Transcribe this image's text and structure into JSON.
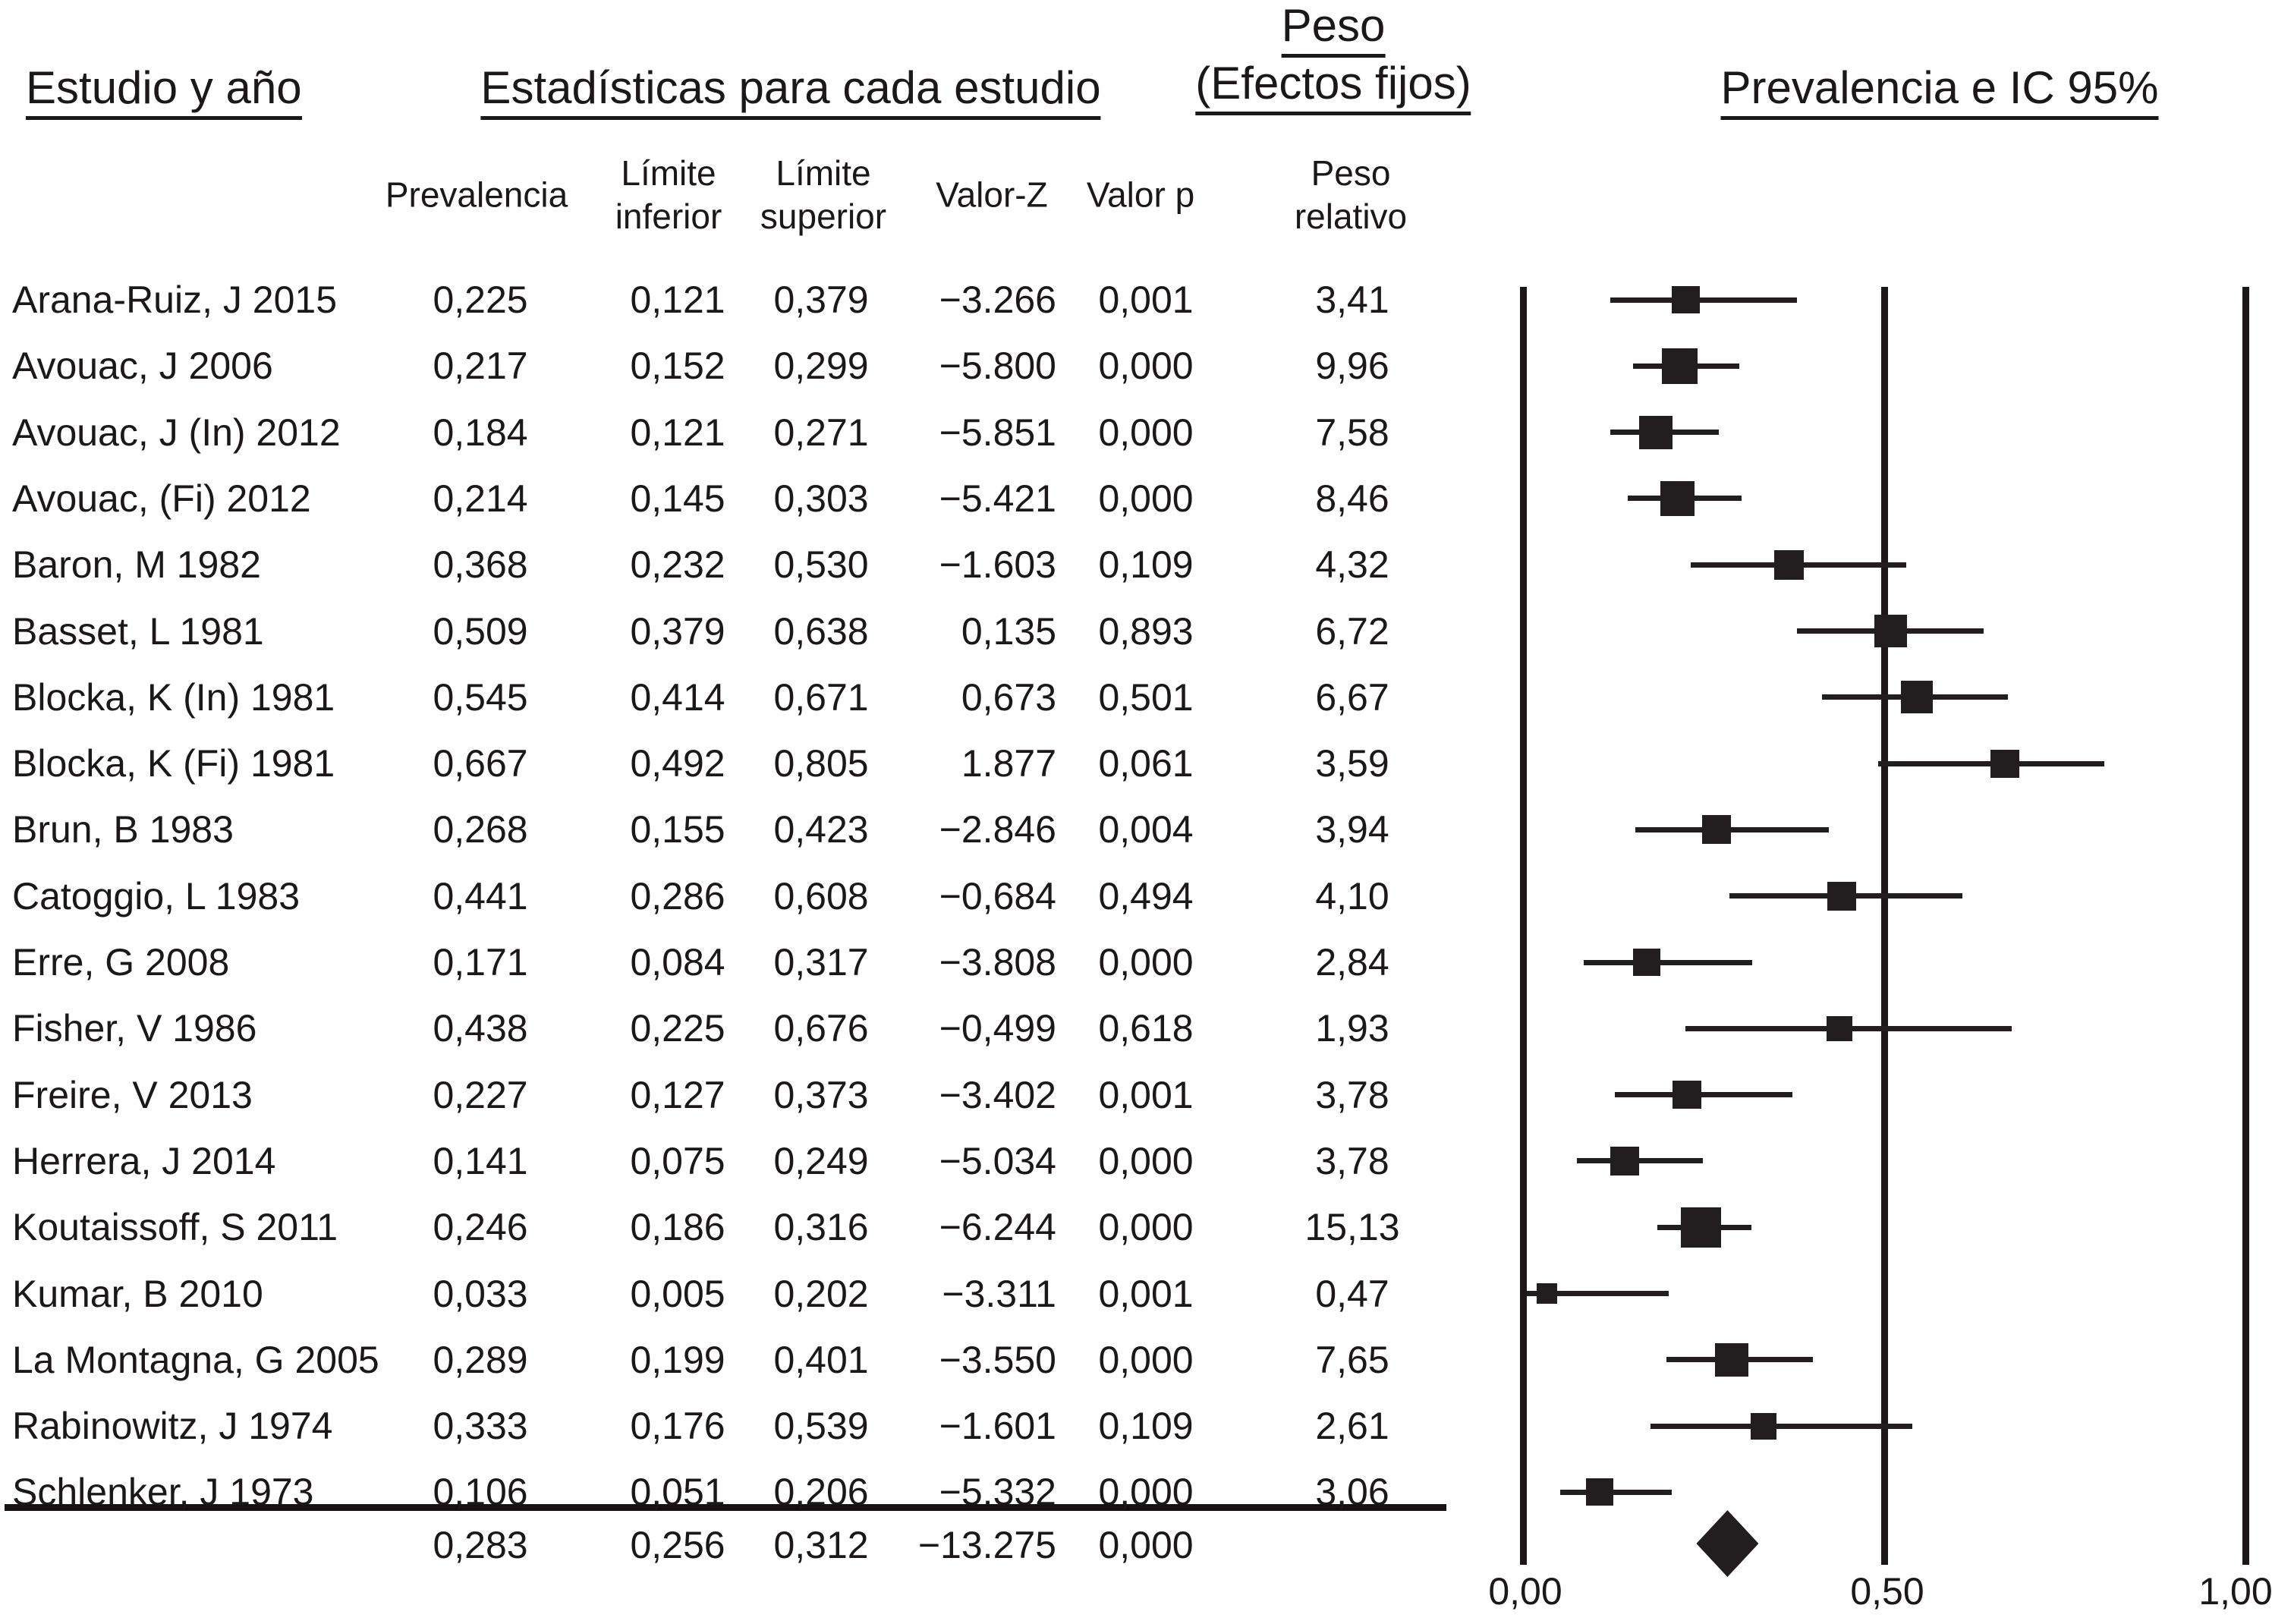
{
  "header": {
    "study_title": "Estudio y año",
    "stats_title": "Estadísticas para cada estudio",
    "weight_title": [
      "Peso",
      "(Efectos fijos)"
    ],
    "plot_title": "Prevalencia e IC 95%"
  },
  "table_headers": {
    "prevalencia": "Prevalencia",
    "limite_inferior": [
      "Límite",
      "inferior"
    ],
    "limite_superior": [
      "Límite",
      "superior"
    ],
    "valor_z": "Valor-Z",
    "valor_p": "Valor p",
    "peso_relativo": [
      "Peso",
      "relativo"
    ]
  },
  "chart_data": {
    "type": "forest",
    "title": "Prevalencia e IC 95%",
    "effects_model": "Efectos fijos",
    "x_axis": {
      "ticks": [
        {
          "label": "0,00",
          "value": 0.0
        },
        {
          "label": "0,50",
          "value": 0.5
        },
        {
          "label": "1,00",
          "value": 1.0
        }
      ],
      "range": [
        0,
        1
      ],
      "gridlines": [
        0,
        0.5,
        1
      ]
    },
    "studies": [
      {
        "name": "Arana-Ruiz, J 2015",
        "prevalencia": "0,225",
        "limite_inferior": "0,121",
        "limite_superior": "0,379",
        "valor_z": "−3.266",
        "valor_p": "0,001",
        "peso_relativo": "3,41",
        "est": 0.225,
        "lo": 0.121,
        "hi": 0.379,
        "weight": 3.41
      },
      {
        "name": "Avouac, J 2006",
        "prevalencia": "0,217",
        "limite_inferior": "0,152",
        "limite_superior": "0,299",
        "valor_z": "−5.800",
        "valor_p": "0,000",
        "peso_relativo": "9,96",
        "est": 0.217,
        "lo": 0.152,
        "hi": 0.299,
        "weight": 9.96
      },
      {
        "name": "Avouac, J (In) 2012",
        "prevalencia": "0,184",
        "limite_inferior": "0,121",
        "limite_superior": "0,271",
        "valor_z": "−5.851",
        "valor_p": "0,000",
        "peso_relativo": "7,58",
        "est": 0.184,
        "lo": 0.121,
        "hi": 0.271,
        "weight": 7.58
      },
      {
        "name": "Avouac, (Fi) 2012",
        "prevalencia": "0,214",
        "limite_inferior": "0,145",
        "limite_superior": "0,303",
        "valor_z": "−5.421",
        "valor_p": "0,000",
        "peso_relativo": "8,46",
        "est": 0.214,
        "lo": 0.145,
        "hi": 0.303,
        "weight": 8.46
      },
      {
        "name": "Baron, M 1982",
        "prevalencia": "0,368",
        "limite_inferior": "0,232",
        "limite_superior": "0,530",
        "valor_z": "−1.603",
        "valor_p": "0,109",
        "peso_relativo": "4,32",
        "est": 0.368,
        "lo": 0.232,
        "hi": 0.53,
        "weight": 4.32
      },
      {
        "name": "Basset, L 1981",
        "prevalencia": "0,509",
        "limite_inferior": "0,379",
        "limite_superior": "0,638",
        "valor_z": "0,135",
        "valor_p": "0,893",
        "peso_relativo": "6,72",
        "est": 0.509,
        "lo": 0.379,
        "hi": 0.638,
        "weight": 6.72
      },
      {
        "name": "Blocka, K (In) 1981",
        "prevalencia": "0,545",
        "limite_inferior": "0,414",
        "limite_superior": "0,671",
        "valor_z": "0,673",
        "valor_p": "0,501",
        "peso_relativo": "6,67",
        "est": 0.545,
        "lo": 0.414,
        "hi": 0.671,
        "weight": 6.67
      },
      {
        "name": "Blocka, K (Fi) 1981",
        "prevalencia": "0,667",
        "limite_inferior": "0,492",
        "limite_superior": "0,805",
        "valor_z": "1.877",
        "valor_p": "0,061",
        "peso_relativo": "3,59",
        "est": 0.667,
        "lo": 0.492,
        "hi": 0.805,
        "weight": 3.59
      },
      {
        "name": "Brun, B 1983",
        "prevalencia": "0,268",
        "limite_inferior": "0,155",
        "limite_superior": "0,423",
        "valor_z": "−2.846",
        "valor_p": "0,004",
        "peso_relativo": "3,94",
        "est": 0.268,
        "lo": 0.155,
        "hi": 0.423,
        "weight": 3.94
      },
      {
        "name": "Catoggio, L 1983",
        "prevalencia": "0,441",
        "limite_inferior": "0,286",
        "limite_superior": "0,608",
        "valor_z": "−0,684",
        "valor_p": "0,494",
        "peso_relativo": "4,10",
        "est": 0.441,
        "lo": 0.286,
        "hi": 0.608,
        "weight": 4.1
      },
      {
        "name": "Erre, G 2008",
        "prevalencia": "0,171",
        "limite_inferior": "0,084",
        "limite_superior": "0,317",
        "valor_z": "−3.808",
        "valor_p": "0,000",
        "peso_relativo": "2,84",
        "est": 0.171,
        "lo": 0.084,
        "hi": 0.317,
        "weight": 2.84
      },
      {
        "name": "Fisher, V 1986",
        "prevalencia": "0,438",
        "limite_inferior": "0,225",
        "limite_superior": "0,676",
        "valor_z": "−0,499",
        "valor_p": "0,618",
        "peso_relativo": "1,93",
        "est": 0.438,
        "lo": 0.225,
        "hi": 0.676,
        "weight": 1.93
      },
      {
        "name": "Freire, V 2013",
        "prevalencia": "0,227",
        "limite_inferior": "0,127",
        "limite_superior": "0,373",
        "valor_z": "−3.402",
        "valor_p": "0,001",
        "peso_relativo": "3,78",
        "est": 0.227,
        "lo": 0.127,
        "hi": 0.373,
        "weight": 3.78
      },
      {
        "name": "Herrera, J 2014",
        "prevalencia": "0,141",
        "limite_inferior": "0,075",
        "limite_superior": "0,249",
        "valor_z": "−5.034",
        "valor_p": "0,000",
        "peso_relativo": "3,78",
        "est": 0.141,
        "lo": 0.075,
        "hi": 0.249,
        "weight": 3.78
      },
      {
        "name": "Koutaissoff, S 2011",
        "prevalencia": "0,246",
        "limite_inferior": "0,186",
        "limite_superior": "0,316",
        "valor_z": "−6.244",
        "valor_p": "0,000",
        "peso_relativo": "15,13",
        "est": 0.246,
        "lo": 0.186,
        "hi": 0.316,
        "weight": 15.13
      },
      {
        "name": "Kumar, B 2010",
        "prevalencia": "0,033",
        "limite_inferior": "0,005",
        "limite_superior": "0,202",
        "valor_z": "−3.311",
        "valor_p": "0,001",
        "peso_relativo": "0,47",
        "est": 0.033,
        "lo": 0.005,
        "hi": 0.202,
        "weight": 0.47
      },
      {
        "name": "La Montagna, G 2005",
        "prevalencia": "0,289",
        "limite_inferior": "0,199",
        "limite_superior": "0,401",
        "valor_z": "−3.550",
        "valor_p": "0,000",
        "peso_relativo": "7,65",
        "est": 0.289,
        "lo": 0.199,
        "hi": 0.401,
        "weight": 7.65
      },
      {
        "name": "Rabinowitz, J 1974",
        "prevalencia": "0,333",
        "limite_inferior": "0,176",
        "limite_superior": "0,539",
        "valor_z": "−1.601",
        "valor_p": "0,109",
        "peso_relativo": "2,61",
        "est": 0.333,
        "lo": 0.176,
        "hi": 0.539,
        "weight": 2.61
      },
      {
        "name": "Schlenker, J 1973",
        "prevalencia": "0,106",
        "limite_inferior": "0,051",
        "limite_superior": "0,206",
        "valor_z": "−5.332",
        "valor_p": "0,000",
        "peso_relativo": "3,06",
        "est": 0.106,
        "lo": 0.051,
        "hi": 0.206,
        "weight": 3.06
      }
    ],
    "summary": {
      "prevalencia": "0,283",
      "limite_inferior": "0,256",
      "limite_superior": "0,312",
      "valor_z": "−13.275",
      "valor_p": "0,000",
      "est": 0.283,
      "lo": 0.256,
      "hi": 0.312
    }
  }
}
